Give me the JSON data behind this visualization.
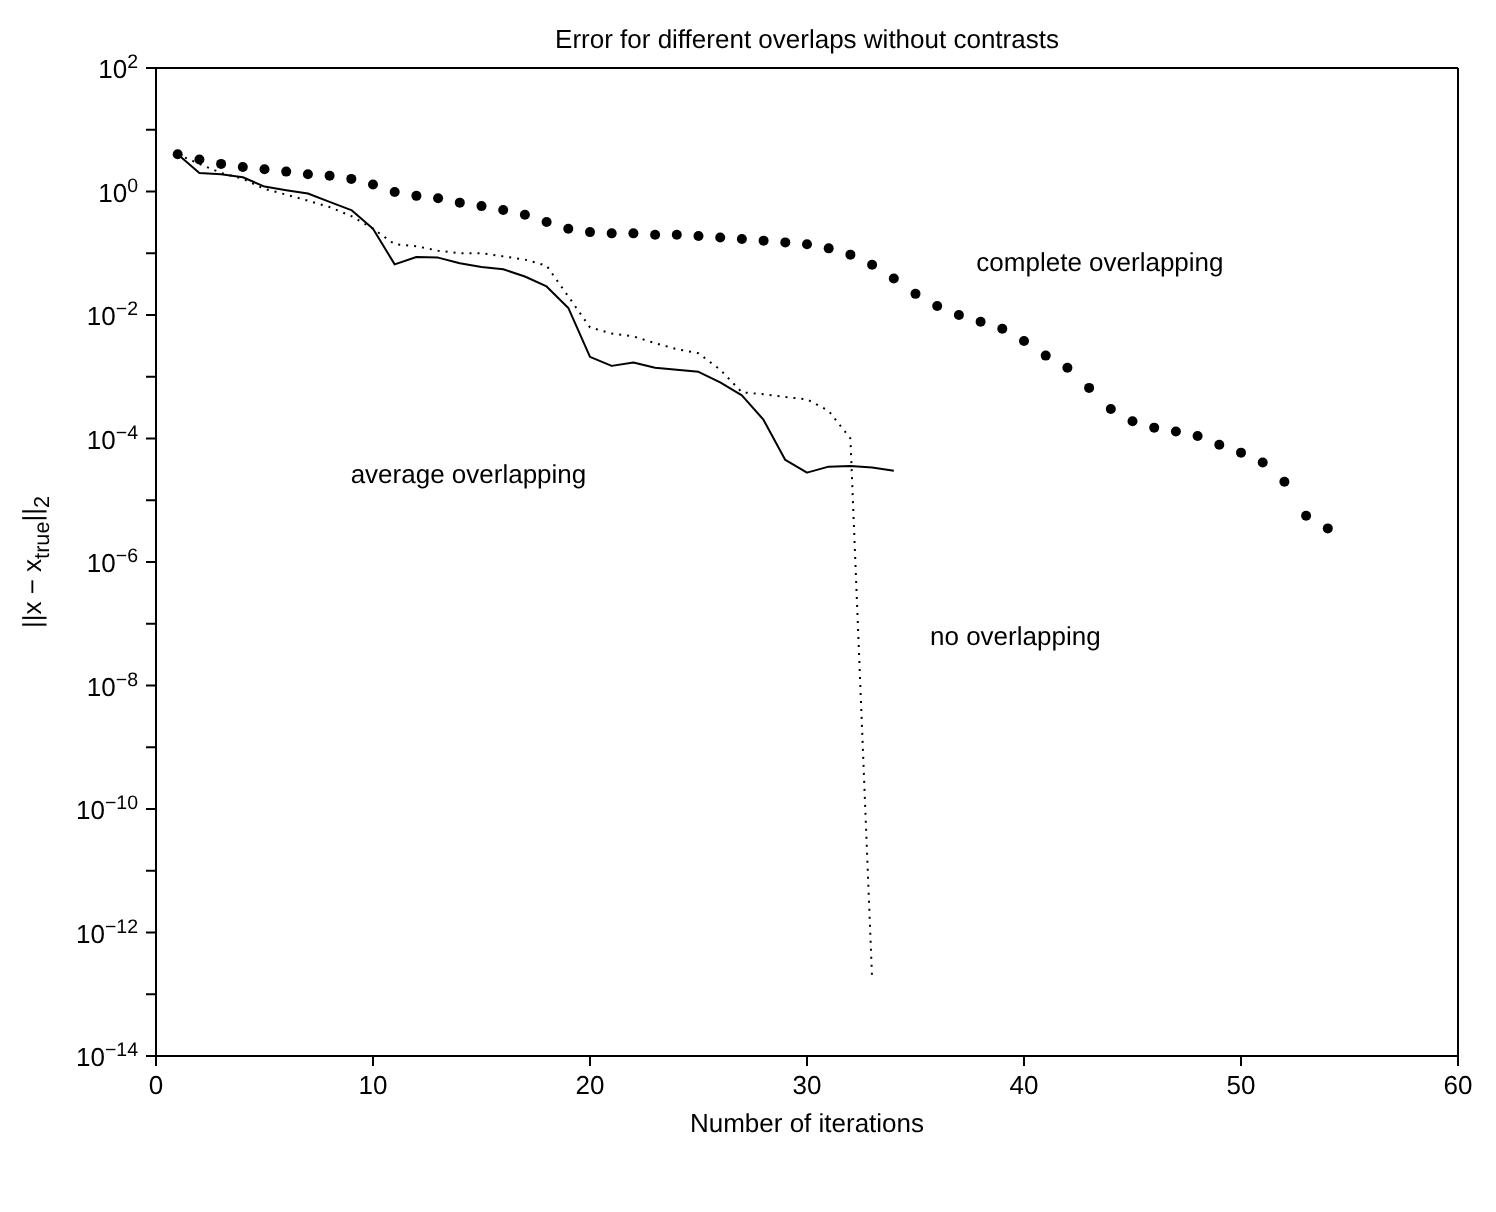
{
  "chart_data": {
    "type": "line",
    "title": "Error for different overlaps without contrasts",
    "xlabel": "Number of iterations",
    "ylabel": "||x − x$_{true}$||$_{2}$",
    "log": "y",
    "xlim": [
      0,
      60
    ],
    "xticks": [
      0,
      10,
      20,
      30,
      40,
      50,
      60
    ],
    "ylim": [
      1e-14,
      100
    ],
    "yticks": [
      {
        "value": 100,
        "label": "10$^{2}$"
      },
      {
        "value": 10,
        "label": null
      },
      {
        "value": 1,
        "label": "10$^{0}$"
      },
      {
        "value": 0.1,
        "label": null
      },
      {
        "value": 0.01,
        "label": "10$^{−2}$"
      },
      {
        "value": 0.001,
        "label": null
      },
      {
        "value": 0.0001,
        "label": "10$^{−4}$"
      },
      {
        "value": 1e-05,
        "label": null
      },
      {
        "value": 1e-06,
        "label": "10$^{−6}$"
      },
      {
        "value": 1e-07,
        "label": null
      },
      {
        "value": 1e-08,
        "label": "10$^{−8}$"
      },
      {
        "value": 1e-09,
        "label": null
      },
      {
        "value": 1e-10,
        "label": "10$^{−10}$"
      },
      {
        "value": 1e-11,
        "label": null
      },
      {
        "value": 1e-12,
        "label": "10$^{−12}$"
      },
      {
        "value": 1e-13,
        "label": null
      },
      {
        "value": 1e-14,
        "label": "10$^{−14}$"
      }
    ],
    "series": [
      {
        "type": "scatter",
        "marker": "circle",
        "color": "#000000",
        "x": [
          1,
          2,
          3,
          4,
          5,
          6,
          7,
          8,
          9,
          10,
          11,
          12,
          13,
          14,
          15,
          16,
          17,
          18,
          19,
          20,
          21,
          22,
          23,
          24,
          25,
          26,
          27,
          28,
          29,
          30,
          31,
          32,
          33,
          34,
          35,
          36,
          37,
          38,
          39,
          40,
          41,
          42,
          43,
          44,
          45,
          46,
          47,
          48,
          49,
          50,
          51,
          52,
          53,
          54
        ],
        "values": [
          4.0,
          3.3,
          2.8,
          2.5,
          2.3,
          2.1,
          1.9,
          1.8,
          1.6,
          1.3,
          0.98,
          0.85,
          0.78,
          0.66,
          0.58,
          0.5,
          0.42,
          0.32,
          0.25,
          0.22,
          0.21,
          0.21,
          0.2,
          0.2,
          0.19,
          0.18,
          0.17,
          0.16,
          0.15,
          0.14,
          0.12,
          0.095,
          0.065,
          0.039,
          0.022,
          0.014,
          0.01,
          0.0078,
          0.006,
          0.0038,
          0.0022,
          0.0014,
          0.00066,
          0.0003,
          0.00019,
          0.00015,
          0.00013,
          0.00011,
          7.9e-05,
          5.9e-05,
          4.1e-05,
          2e-05,
          5.6e-06,
          3.5e-06
        ]
      },
      {
        "line_style": "solid",
        "color": "#000000",
        "x": [
          1,
          2,
          3,
          4,
          5,
          6,
          7,
          8,
          9,
          10,
          11,
          12,
          13,
          14,
          15,
          16,
          17,
          18,
          19,
          20,
          21,
          22,
          23,
          24,
          25,
          26,
          27,
          28,
          29,
          30,
          31,
          32,
          33,
          34
        ],
        "values": [
          4.0,
          2.0,
          1.9,
          1.7,
          1.2,
          1.05,
          0.93,
          0.68,
          0.5,
          0.25,
          0.066,
          0.087,
          0.085,
          0.069,
          0.06,
          0.055,
          0.042,
          0.029,
          0.013,
          0.0021,
          0.0015,
          0.0017,
          0.0014,
          0.0013,
          0.0012,
          0.00081,
          0.0005,
          0.0002,
          4.5e-05,
          2.8e-05,
          3.5e-05,
          3.6e-05,
          3.4e-05,
          3e-05
        ]
      },
      {
        "line_style": "dotted",
        "color": "#000000",
        "x": [
          1,
          2,
          3,
          4,
          5,
          6,
          7,
          8,
          9,
          10,
          11,
          12,
          13,
          14,
          15,
          16,
          17,
          18,
          19,
          20,
          21,
          22,
          23,
          24,
          25,
          26,
          27,
          28,
          29,
          30,
          31,
          32,
          33
        ],
        "values": [
          4.0,
          2.8,
          2.0,
          1.6,
          1.1,
          0.89,
          0.71,
          0.56,
          0.4,
          0.25,
          0.14,
          0.13,
          0.11,
          0.1,
          0.1,
          0.089,
          0.079,
          0.063,
          0.02,
          0.0063,
          0.005,
          0.0045,
          0.0035,
          0.0028,
          0.0024,
          0.0013,
          0.00056,
          0.00052,
          0.00047,
          0.00043,
          0.00028,
          0.0001,
          1.8e-13
        ]
      }
    ],
    "annotations": [
      "complete overlapping",
      "average overlapping",
      "no overlapping"
    ]
  }
}
